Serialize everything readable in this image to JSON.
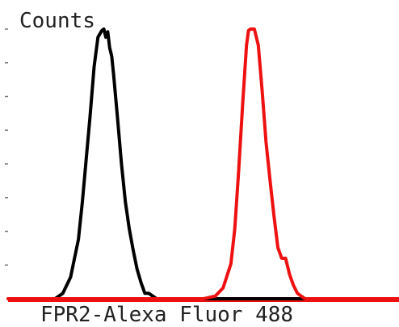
{
  "chart_data": {
    "type": "line",
    "title": "",
    "ylabel": "Counts",
    "xlabel": "FPR2-Alexa Fluor 488",
    "xlim": [
      0,
      1
    ],
    "ylim": [
      0,
      1
    ],
    "grid": false,
    "legend": "none",
    "series": [
      {
        "color": "#000000",
        "x": [
          0.0,
          0.12,
          0.14,
          0.16,
          0.18,
          0.19,
          0.2,
          0.21,
          0.22,
          0.23,
          0.24,
          0.245,
          0.25,
          0.255,
          0.26,
          0.265,
          0.27,
          0.28,
          0.29,
          0.3,
          0.31,
          0.32,
          0.33,
          0.34,
          0.35,
          0.36,
          0.37,
          0.38,
          0.4,
          0.44,
          1.0
        ],
        "y": [
          0.0,
          0.0,
          0.02,
          0.08,
          0.22,
          0.36,
          0.52,
          0.68,
          0.86,
          0.97,
          0.995,
          1.0,
          0.97,
          0.99,
          0.93,
          0.9,
          0.83,
          0.67,
          0.5,
          0.36,
          0.26,
          0.18,
          0.11,
          0.06,
          0.02,
          0.02,
          0.01,
          0.0,
          0.0,
          0.0,
          0.0
        ]
      },
      {
        "color": "#ee1111",
        "x": [
          0.0,
          0.5,
          0.53,
          0.55,
          0.57,
          0.58,
          0.59,
          0.6,
          0.61,
          0.615,
          0.62,
          0.63,
          0.64,
          0.65,
          0.66,
          0.67,
          0.68,
          0.69,
          0.7,
          0.71,
          0.72,
          0.73,
          0.74,
          0.75,
          0.76,
          0.77,
          0.78,
          0.8,
          1.0
        ],
        "y": [
          0.0,
          0.0,
          0.01,
          0.04,
          0.13,
          0.26,
          0.48,
          0.72,
          0.94,
          0.995,
          1.0,
          1.0,
          0.94,
          0.77,
          0.58,
          0.44,
          0.31,
          0.19,
          0.15,
          0.15,
          0.09,
          0.05,
          0.02,
          0.01,
          0.0,
          0.0,
          0.0,
          0.0,
          0.0
        ]
      }
    ]
  }
}
